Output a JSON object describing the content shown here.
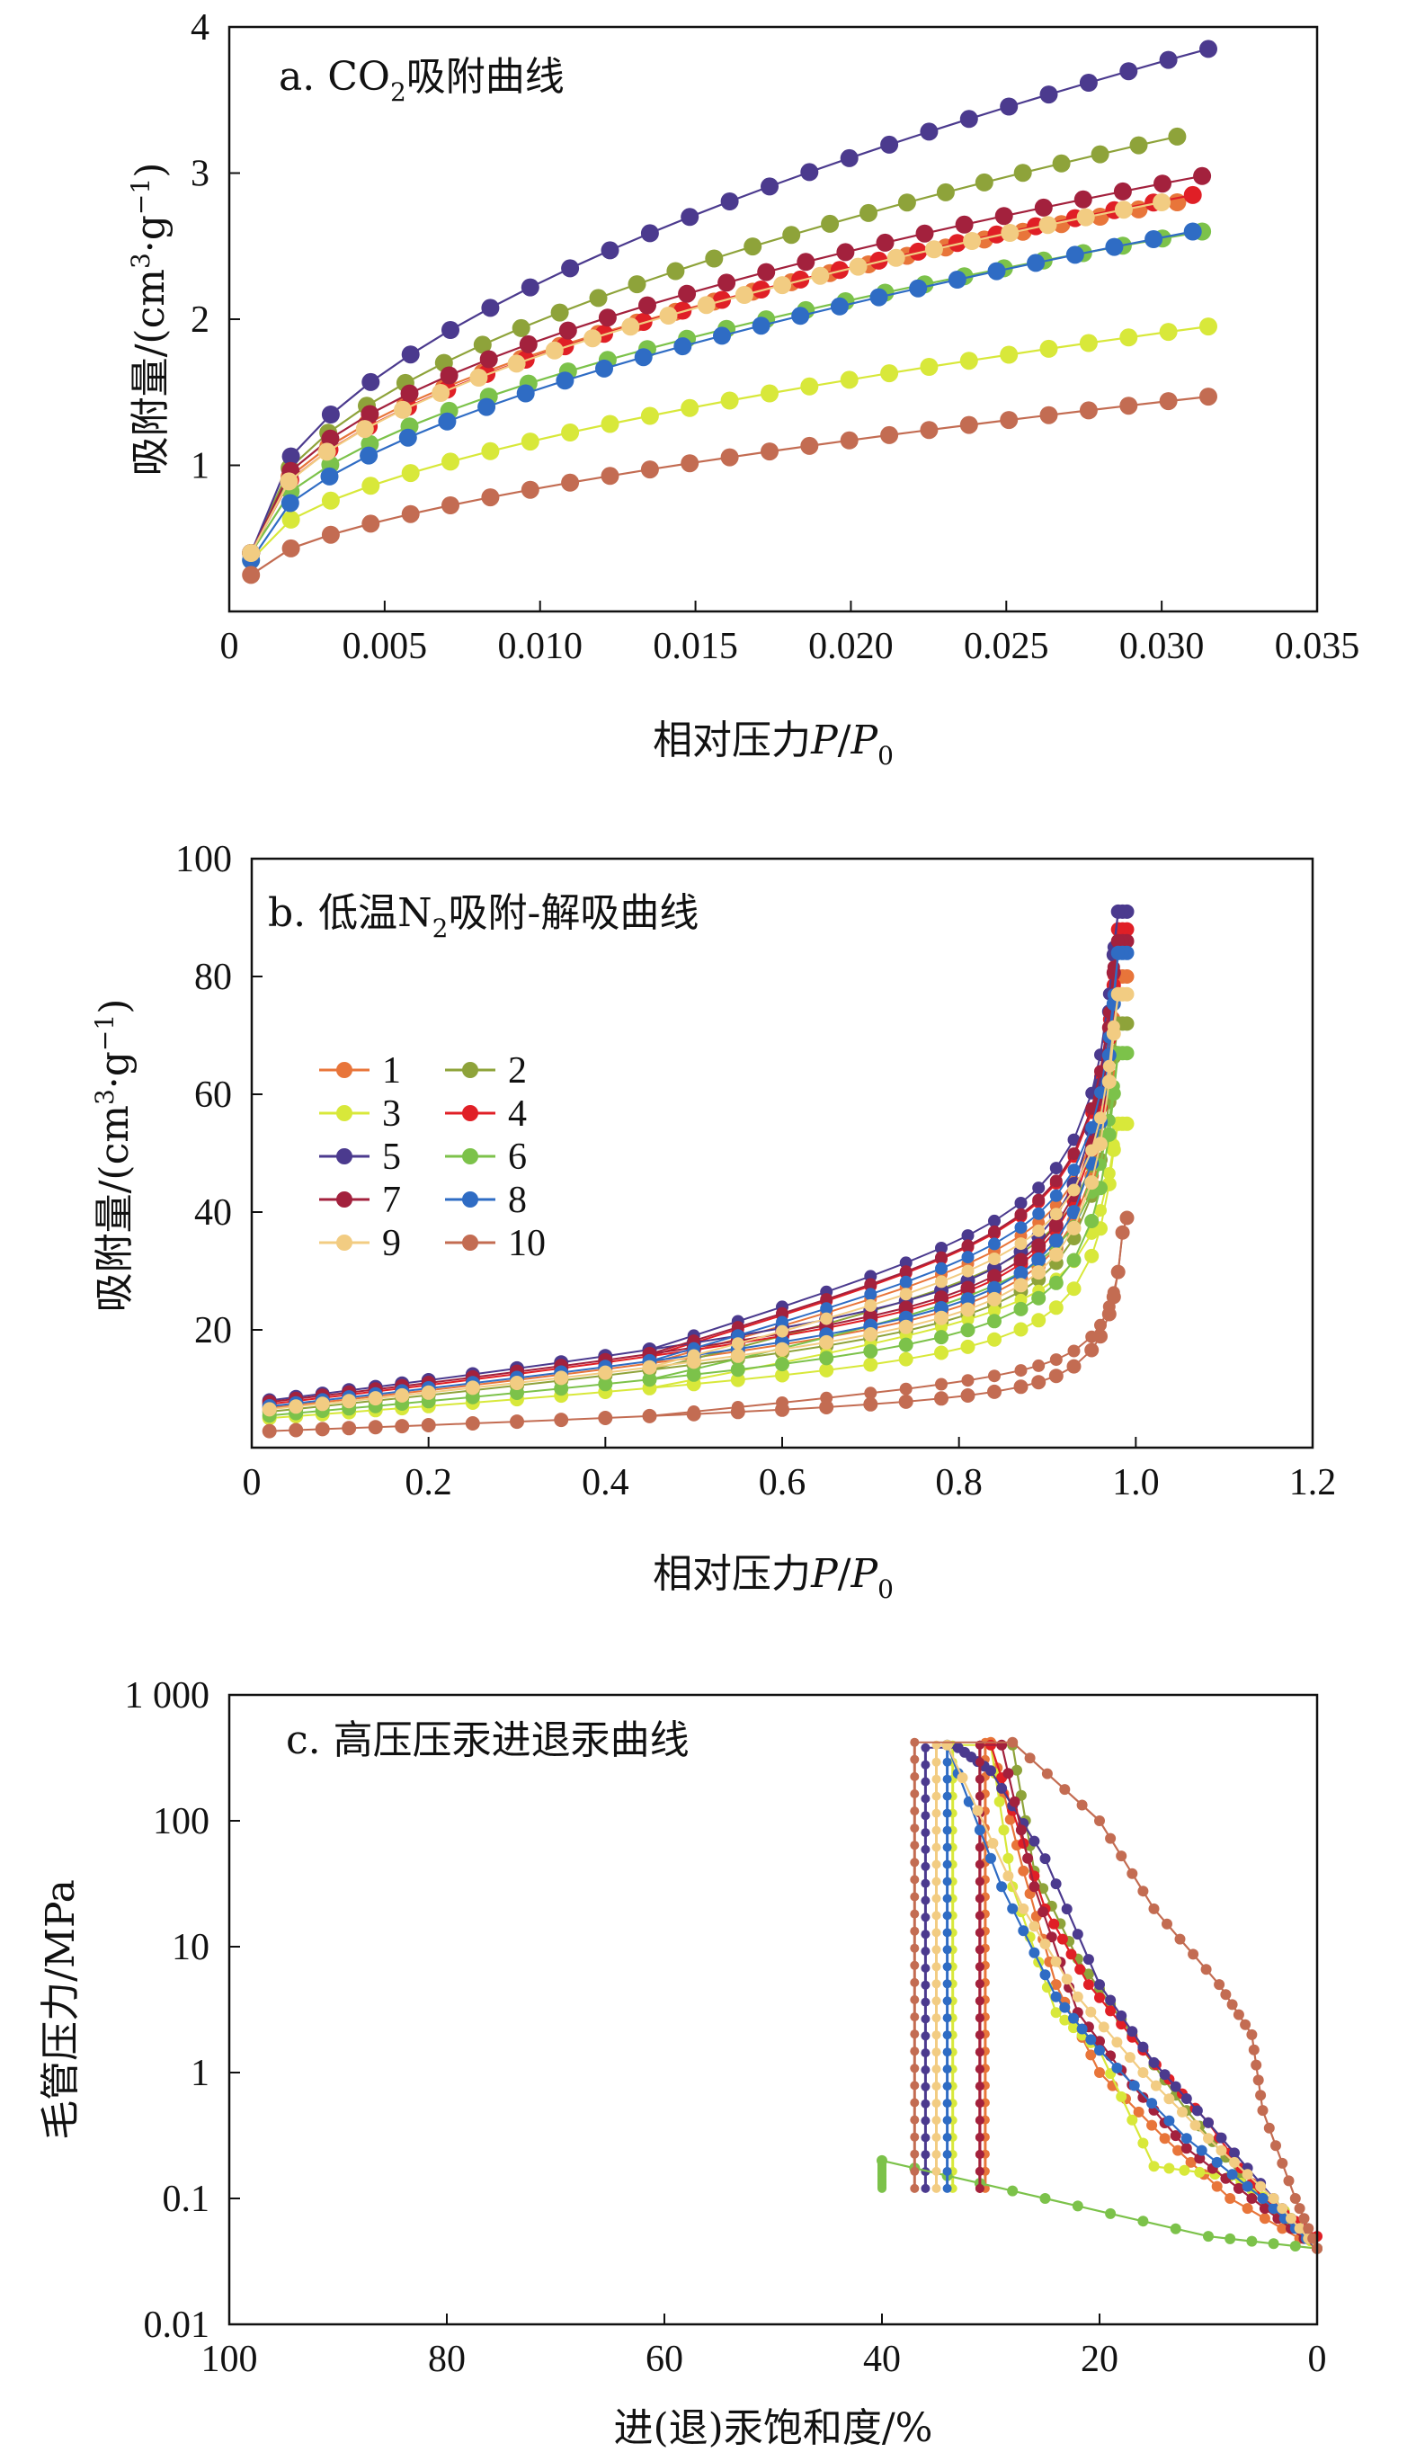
{
  "chart_data": [
    {
      "id": "a",
      "type": "line",
      "title": "a. CO2吸附曲线",
      "title_main": "a. CO",
      "title_sub": "2",
      "title_tail": "吸附曲线",
      "xlabel": "相对压力P/P0",
      "xlabel_main": "相对压力",
      "xlabel_italic": "P",
      "xlabel_slash": "/",
      "xlabel_italic2": "P",
      "xlabel_sub": "0",
      "ylabel": "吸附量/(cm3·g−1)",
      "ylabel_main": "吸附量/(cm",
      "ylabel_sup1": "3",
      "ylabel_mid": "·g",
      "ylabel_sup2": "−1",
      "ylabel_tail": ")",
      "xlim": [
        0,
        0.035
      ],
      "ylim": [
        0,
        4
      ],
      "x_ticks": [
        0,
        0.005,
        0.01,
        0.015,
        0.02,
        0.025,
        0.03,
        0.035
      ],
      "x_tick_labels": [
        "0",
        "0.005",
        "0.010",
        "0.015",
        "0.020",
        "0.025",
        "0.030",
        "0.035"
      ],
      "y_ticks": [
        1,
        2,
        3,
        4
      ],
      "y_tick_labels": [
        "1",
        "2",
        "3",
        "4"
      ],
      "curve_model": "y = y0 + A * ((x - 0.0007) / (xmax - 0.0007))^p",
      "series": [
        {
          "legend": "1",
          "color": "#e8753a",
          "y0": 0.4,
          "A": 2.4,
          "p": 0.48,
          "xmax": 0.0305
        },
        {
          "legend": "2",
          "color": "#8ea33a",
          "y0": 0.4,
          "A": 2.85,
          "p": 0.5,
          "xmax": 0.0305
        },
        {
          "legend": "3",
          "color": "#d8e83a",
          "y0": 0.35,
          "A": 1.6,
          "p": 0.55,
          "xmax": 0.0315
        },
        {
          "legend": "4",
          "color": "#e01f26",
          "y0": 0.4,
          "A": 2.45,
          "p": 0.5,
          "xmax": 0.031
        },
        {
          "legend": "5",
          "color": "#4b3a8e",
          "y0": 0.4,
          "A": 3.45,
          "p": 0.52,
          "xmax": 0.0315
        },
        {
          "legend": "6",
          "color": "#7cc24a",
          "y0": 0.4,
          "A": 2.2,
          "p": 0.52,
          "xmax": 0.0313
        },
        {
          "legend": "7",
          "color": "#a3213d",
          "y0": 0.4,
          "A": 2.58,
          "p": 0.48,
          "xmax": 0.0313
        },
        {
          "legend": "8",
          "color": "#2f6cc4",
          "y0": 0.35,
          "A": 2.25,
          "p": 0.55,
          "xmax": 0.031
        },
        {
          "legend": "9",
          "color": "#f2cc82",
          "y0": 0.4,
          "A": 2.4,
          "p": 0.5,
          "xmax": 0.03
        },
        {
          "legend": "10",
          "color": "#c36c52",
          "y0": 0.25,
          "A": 1.22,
          "p": 0.6,
          "xmax": 0.0315
        }
      ]
    },
    {
      "id": "b",
      "type": "line",
      "title": "b. 低温N2吸附-解吸曲线",
      "title_main": "b. 低温N",
      "title_sub": "2",
      "title_tail": "吸附-解吸曲线",
      "xlabel": "相对压力P/P0",
      "xlabel_main": "相对压力",
      "xlabel_italic": "P",
      "xlabel_slash": "/",
      "xlabel_italic2": "P",
      "xlabel_sub": "0",
      "ylabel": "吸附量/(cm3·g−1)",
      "ylabel_main": "吸附量/(cm",
      "ylabel_sup1": "3",
      "ylabel_mid": "·g",
      "ylabel_sup2": "−1",
      "ylabel_tail": ")",
      "xlim": [
        0,
        1.2
      ],
      "ylim": [
        0,
        100
      ],
      "x_ticks": [
        0,
        0.2,
        0.4,
        0.6,
        0.8,
        1.0,
        1.2
      ],
      "x_tick_labels": [
        "0",
        "0.2",
        "0.4",
        "0.6",
        "0.8",
        "1.0",
        "1.2"
      ],
      "y_ticks": [
        20,
        40,
        60,
        80,
        100
      ],
      "y_tick_labels": [
        "20",
        "40",
        "60",
        "80",
        "100"
      ],
      "legend_position": "left",
      "legend_entries": [
        "1",
        "2",
        "3",
        "4",
        "5",
        "6",
        "7",
        "8",
        "9",
        "10"
      ],
      "curve_model": "adsorption y = L0 + s*x + c/(1.002 - x); desorption lies above it for 0.45 < x < 0.98",
      "series": [
        {
          "legend": "1",
          "color": "#e8753a",
          "L0": 5.0,
          "s": 15,
          "c": 1.4,
          "max": 80
        },
        {
          "legend": "2",
          "color": "#8ea33a",
          "L0": 4.5,
          "s": 14,
          "c": 1.3,
          "max": 72
        },
        {
          "legend": "3",
          "color": "#d8e83a",
          "L0": 3.8,
          "s": 10,
          "c": 1.0,
          "max": 55
        },
        {
          "legend": "4",
          "color": "#e01f26",
          "L0": 5.5,
          "s": 16,
          "c": 1.55,
          "max": 88
        },
        {
          "legend": "5",
          "color": "#4b3a8e",
          "L0": 6.0,
          "s": 17,
          "c": 1.65,
          "max": 91
        },
        {
          "legend": "6",
          "color": "#7cc24a",
          "L0": 4.0,
          "s": 12,
          "c": 1.2,
          "max": 67
        },
        {
          "legend": "7",
          "color": "#a3213d",
          "L0": 5.8,
          "s": 16,
          "c": 1.6,
          "max": 86
        },
        {
          "legend": "8",
          "color": "#2f6cc4",
          "L0": 5.2,
          "s": 15,
          "c": 1.5,
          "max": 84
        },
        {
          "legend": "9",
          "color": "#f2cc82",
          "L0": 4.8,
          "s": 14,
          "c": 1.4,
          "max": 77
        },
        {
          "legend": "10",
          "color": "#c36c52",
          "L0": 2.2,
          "s": 5,
          "c": 0.5,
          "max": 39
        }
      ]
    },
    {
      "id": "c",
      "type": "line",
      "title": "c. 高压压汞进退汞曲线",
      "xlabel": "进(退)汞饱和度/%",
      "ylabel": "毛管压力/MPa",
      "x_reversed": true,
      "y_log": true,
      "xlim": [
        100,
        0
      ],
      "ylim": [
        0.01,
        1000
      ],
      "x_ticks": [
        100,
        80,
        60,
        40,
        20,
        0
      ],
      "x_tick_labels": [
        "100",
        "80",
        "60",
        "40",
        "20",
        "0"
      ],
      "y_ticks": [
        0.01,
        0.1,
        1,
        10,
        100,
        1000
      ],
      "y_tick_labels": [
        "0.01",
        "0.1",
        "1",
        "10",
        "100",
        "1 000"
      ],
      "series": [
        {
          "legend": "1",
          "color": "#e8753a",
          "intrusion": [
            [
              0,
              0.04
            ],
            [
              8,
              0.1
            ],
            [
              14,
              0.3
            ],
            [
              20,
              1
            ],
            [
              24,
              5
            ],
            [
              27,
              40
            ],
            [
              30,
              420
            ]
          ],
          "extrusion_x": 30.5
        },
        {
          "legend": "2",
          "color": "#8ea33a",
          "intrusion": [
            [
              0,
              0.04
            ],
            [
              6,
              0.12
            ],
            [
              12,
              0.5
            ],
            [
              17,
              2
            ],
            [
              22,
              8
            ],
            [
              26,
              40
            ],
            [
              28,
              400
            ]
          ],
          "extrusion_x": 31
        },
        {
          "legend": "3",
          "color": "#d8e83a",
          "intrusion": [
            [
              0,
              0.04
            ],
            [
              3,
              0.08
            ],
            [
              8,
              0.15
            ],
            [
              15,
              0.18
            ],
            [
              20,
              1.5
            ],
            [
              24,
              3
            ],
            [
              28,
              30
            ],
            [
              30,
              400
            ]
          ],
          "extrusion_x": 33.5
        },
        {
          "legend": "4",
          "color": "#e01f26",
          "intrusion": [
            [
              0,
              0.05
            ],
            [
              5,
              0.1
            ],
            [
              10,
              0.4
            ],
            [
              16,
              1.5
            ],
            [
              21,
              5
            ],
            [
              25,
              20
            ],
            [
              30,
              400
            ]
          ],
          "extrusion_x": 31
        },
        {
          "legend": "5",
          "color": "#4b3a8e",
          "intrusion": [
            [
              0,
              0.04
            ],
            [
              4,
              0.1
            ],
            [
              10,
              0.4
            ],
            [
              15,
              1.2
            ],
            [
              20,
              5
            ],
            [
              25,
              50
            ],
            [
              30,
              250
            ],
            [
              33,
              380
            ]
          ],
          "extrusion_x": 36
        },
        {
          "legend": "6",
          "color": "#7cc24a",
          "intrusion": [
            [
              0,
              0.04
            ],
            [
              10,
              0.05
            ],
            [
              25,
              0.1
            ],
            [
              40,
              0.2
            ]
          ],
          "extrusion_x": 40
        },
        {
          "legend": "7",
          "color": "#a3213d",
          "intrusion": [
            [
              0,
              0.04
            ],
            [
              6,
              0.1
            ],
            [
              12,
              0.25
            ],
            [
              17,
              0.8
            ],
            [
              22,
              3
            ],
            [
              26,
              30
            ],
            [
              29,
              400
            ]
          ],
          "extrusion_x": 31
        },
        {
          "legend": "8",
          "color": "#2f6cc4",
          "intrusion": [
            [
              0,
              0.04
            ],
            [
              5,
              0.1
            ],
            [
              12,
              0.3
            ],
            [
              20,
              1.5
            ],
            [
              24,
              4
            ],
            [
              29,
              30
            ],
            [
              34,
              400
            ]
          ],
          "extrusion_x": 34
        },
        {
          "legend": "9",
          "color": "#f2cc82",
          "intrusion": [
            [
              0,
              0.04
            ],
            [
              4,
              0.1
            ],
            [
              10,
              0.3
            ],
            [
              16,
              1
            ],
            [
              22,
              4
            ],
            [
              27,
              20
            ],
            [
              34,
              400
            ]
          ],
          "extrusion_x": 35
        },
        {
          "legend": "10",
          "color": "#c36c52",
          "intrusion": [
            [
              0,
              0.04
            ],
            [
              2,
              0.1
            ],
            [
              5,
              0.5
            ],
            [
              6,
              2
            ],
            [
              9,
              5
            ],
            [
              15,
              20
            ],
            [
              20,
              100
            ],
            [
              28,
              420
            ]
          ],
          "extrusion_x": 37
        }
      ]
    }
  ]
}
